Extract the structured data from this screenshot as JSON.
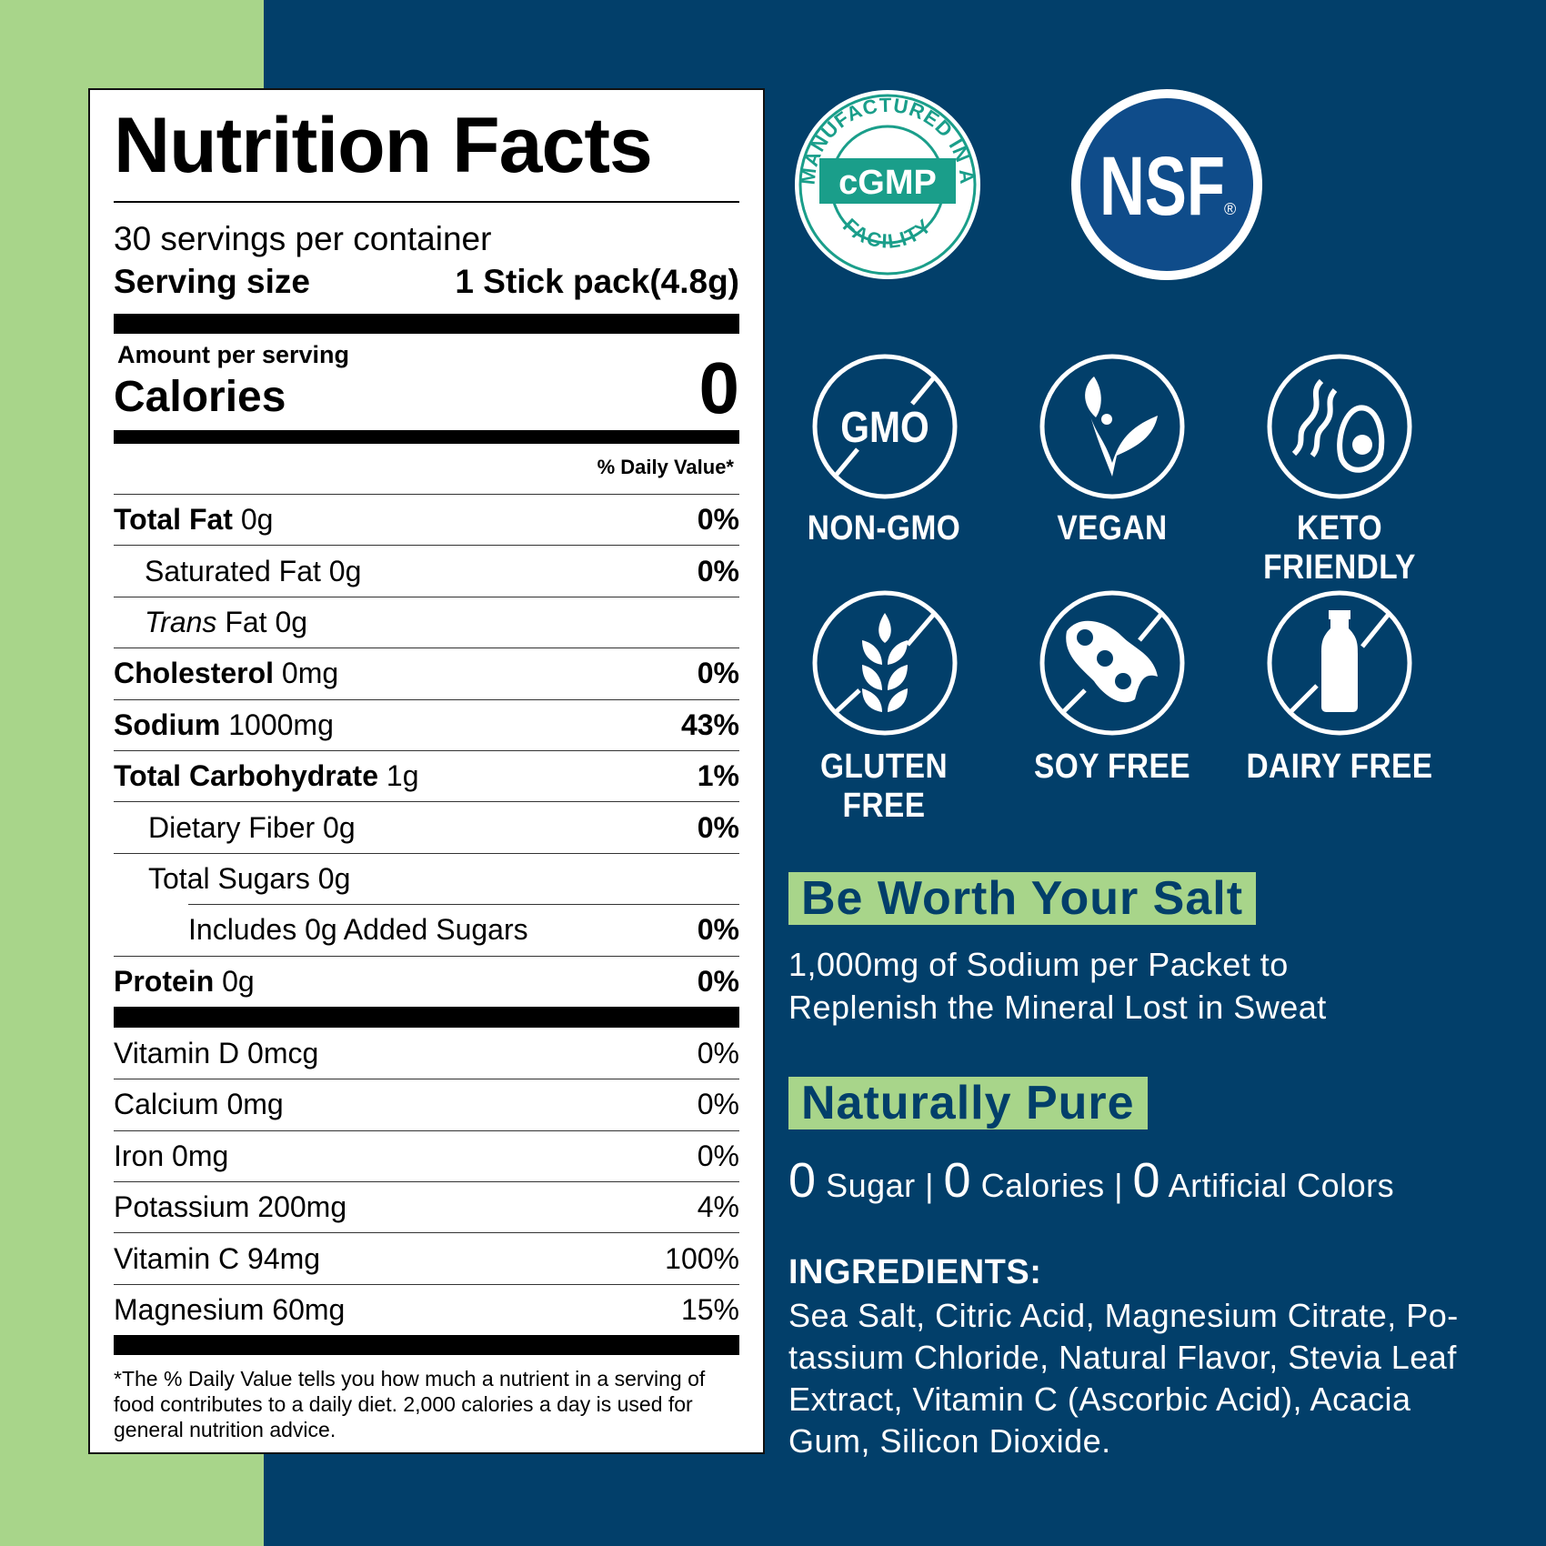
{
  "colors": {
    "navy": "#023f6a",
    "green": "#a8d58a",
    "cgmp_teal": "#1a9e8a",
    "nsf_blue": "#0f4c8a"
  },
  "label": {
    "title": "Nutrition Facts",
    "servings_per_container": "30 servings per container",
    "serving_size_label": "Serving size",
    "serving_size_value": "1 Stick pack(4.8g)",
    "amount_per_serving": "Amount per serving",
    "calories_label": "Calories",
    "calories_value": "0",
    "daily_value_header": "% Daily Value*",
    "nutrients": [
      {
        "name": "Total Fat",
        "amount": "0g",
        "dv": "0%"
      },
      {
        "name": "Saturated Fat",
        "amount": "0g",
        "dv": "0%"
      },
      {
        "name": "Trans",
        "name_rest": "Fat",
        "amount": "0g",
        "dv": ""
      },
      {
        "name": "Cholesterol",
        "amount": "0mg",
        "dv": "0%"
      },
      {
        "name": "Sodium",
        "amount": "1000mg",
        "dv": "43%"
      },
      {
        "name": "Total Carbohydrate",
        "amount": "1g",
        "dv": "1%"
      },
      {
        "name": "Dietary Fiber",
        "amount": "0g",
        "dv": "0%"
      },
      {
        "name": "Total Sugars",
        "amount": "0g",
        "dv": ""
      },
      {
        "name": "Includes 0g Added Sugars",
        "amount": "",
        "dv": "0%"
      },
      {
        "name": "Protein",
        "amount": "0g",
        "dv": "0%"
      }
    ],
    "vitamins": [
      {
        "name": "Vitamin D 0mcg",
        "dv": "0%"
      },
      {
        "name": "Calcium 0mg",
        "dv": "0%"
      },
      {
        "name": "Iron 0mg",
        "dv": "0%"
      },
      {
        "name": "Potassium 200mg",
        "dv": "4%"
      },
      {
        "name": "Vitamin C 94mg",
        "dv": "100%"
      },
      {
        "name": "Magnesium 60mg",
        "dv": "15%"
      }
    ],
    "footnote": "*The % Daily Value tells you how much a nutrient in a serving of food contributes to a daily diet. 2,000 calories a day is used for general nutrition advice."
  },
  "certifications": {
    "cgmp": {
      "center": "cGMP",
      "ring": "MANUFACTURED IN A",
      "bottom": "FACILITY"
    },
    "nsf": {
      "text": "NSF",
      "mark": "®"
    }
  },
  "badges": [
    {
      "label": "NON-GMO",
      "icon": "gmo-crossed-icon",
      "glyph": "GMO"
    },
    {
      "label": "VEGAN",
      "icon": "vegan-leaf-icon"
    },
    {
      "label": "KETO FRIENDLY",
      "icon": "avocado-bacon-icon"
    },
    {
      "label": "GLUTEN FREE",
      "icon": "wheat-crossed-icon"
    },
    {
      "label": "SOY FREE",
      "icon": "soybean-crossed-icon"
    },
    {
      "label": "DAIRY FREE",
      "icon": "milk-bottle-crossed-icon"
    }
  ],
  "salt": {
    "heading": "Be Worth Your Salt",
    "lines": [
      "1,000mg of Sodium per Packet to",
      "Replenish the Mineral Lost in Sweat"
    ]
  },
  "pure": {
    "heading": "Naturally Pure",
    "items": [
      {
        "num": "0",
        "text": "Sugar"
      },
      {
        "num": "0",
        "text": "Calories"
      },
      {
        "num": "0",
        "text": "Artificial Colors"
      }
    ],
    "sep": "|"
  },
  "ingredients": {
    "heading": "INGREDIENTS:",
    "lines": [
      "Sea Salt, Citric Acid, Magnesium Citrate, Po-",
      "tassium Chloride, Natural Flavor, Stevia Leaf",
      "Extract, Vitamin C (Ascorbic Acid), Acacia",
      "Gum, Silicon Dioxide."
    ]
  }
}
